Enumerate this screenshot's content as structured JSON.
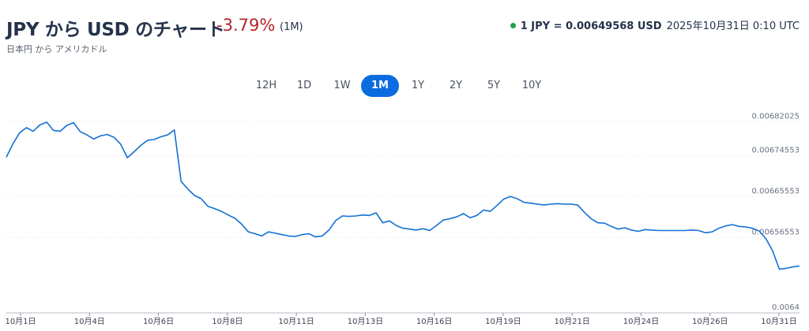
{
  "header": {
    "title": "JPY から USD のチャート",
    "change": "-3.79%",
    "period": "(1M)",
    "subtitle": "日本円 から アメリカドル",
    "rate_label": "1 JPY = 0.00649568 USD",
    "timestamp": "2025年10月31日 0:10 UTC",
    "status_color": "#1ba34a"
  },
  "tabs": {
    "items": [
      {
        "label": "12H"
      },
      {
        "label": "1D"
      },
      {
        "label": "1W"
      },
      {
        "label": "1M"
      },
      {
        "label": "1Y"
      },
      {
        "label": "2Y"
      },
      {
        "label": "5Y"
      },
      {
        "label": "10Y"
      }
    ],
    "active_index": 3,
    "active_color": "#0b6be0"
  },
  "chart_data": {
    "type": "line",
    "line_color": "#1370d4",
    "grid": true,
    "y_ticks": [
      0.00682025,
      0.00674553,
      0.00665553,
      0.00656553,
      0.0064
    ],
    "y_tick_labels": [
      "0.00682025",
      "0.00674553",
      "0.00665553",
      "0.00656553",
      "0.0064"
    ],
    "ylim": [
      0.0064,
      0.0068485
    ],
    "x_tick_labels": [
      "10月1日",
      "10月4日",
      "10月6日",
      "10月8日",
      "10月11日",
      "10月13日",
      "10月16日",
      "10月19日",
      "10月21日",
      "10月24日",
      "10月26日",
      "10月31日"
    ],
    "series": [
      {
        "values": [
          0.006742,
          0.006772,
          0.006796,
          0.006807,
          0.006799,
          0.006813,
          0.006819,
          0.006801,
          0.006799,
          0.006812,
          0.006818,
          0.006798,
          0.006791,
          0.006782,
          0.006789,
          0.006792,
          0.006786,
          0.006771,
          0.006741,
          0.006754,
          0.006768,
          0.006779,
          0.006781,
          0.006787,
          0.006791,
          0.006802,
          0.006689,
          0.006672,
          0.006658,
          0.006651,
          0.006634,
          0.006629,
          0.006623,
          0.006615,
          0.006608,
          0.006595,
          0.006578,
          0.006574,
          0.006569,
          0.006578,
          0.006575,
          0.006572,
          0.006569,
          0.006568,
          0.006572,
          0.006574,
          0.006567,
          0.006569,
          0.006582,
          0.006603,
          0.006613,
          0.006612,
          0.006613,
          0.006615,
          0.006614,
          0.00662,
          0.006598,
          0.006602,
          0.006592,
          0.006586,
          0.006584,
          0.006582,
          0.006585,
          0.006581,
          0.006592,
          0.006604,
          0.006607,
          0.006611,
          0.006618,
          0.006609,
          0.006614,
          0.006626,
          0.006623,
          0.006636,
          0.00665,
          0.006656,
          0.006651,
          0.006643,
          0.006641,
          0.006639,
          0.006637,
          0.006639,
          0.00664,
          0.006639,
          0.006639,
          0.006637,
          0.006621,
          0.006607,
          0.006598,
          0.006597,
          0.00659,
          0.006584,
          0.006587,
          0.006582,
          0.006579,
          0.006583,
          0.006582,
          0.006581,
          0.006581,
          0.006581,
          0.006581,
          0.006581,
          0.006582,
          0.006581,
          0.006576,
          0.006578,
          0.006586,
          0.006591,
          0.006594,
          0.00659,
          0.006589,
          0.006586,
          0.00658,
          0.006563,
          0.006536,
          0.006496,
          0.006498,
          0.006501,
          0.006503
        ]
      }
    ]
  }
}
